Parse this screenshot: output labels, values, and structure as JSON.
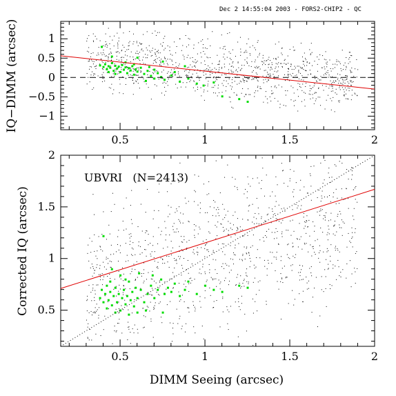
{
  "header": "Dec  2 14:55:04 2003 - FORS2-CHIP2 - QC",
  "colors": {
    "axis": "#000000",
    "fit": "#e00000",
    "highlight": "#00dd00",
    "points": "#000000"
  },
  "chart_data": [
    {
      "type": "scatter",
      "ylabel": "IQ−DIMM (arcsec)",
      "xlim": [
        0.15,
        2.0
      ],
      "ylim": [
        -1.35,
        1.45
      ],
      "xticks": [
        0.5,
        1,
        1.5,
        2
      ],
      "xtick_labels": [
        "0.5",
        "1",
        "1.5",
        "2"
      ],
      "yticks": [
        -1,
        -0.5,
        0,
        0.5,
        1
      ],
      "ytick_labels": [
        "−1",
        "−0.5",
        "0",
        "0.5",
        "1"
      ],
      "reference_line": {
        "y": 0,
        "style": "dashed"
      },
      "fit_line": {
        "x": [
          0.15,
          2.0
        ],
        "y": [
          0.56,
          -0.3
        ]
      },
      "highlight_points": [
        [
          0.38,
          0.32
        ],
        [
          0.4,
          0.28
        ],
        [
          0.41,
          0.35
        ],
        [
          0.42,
          0.22
        ],
        [
          0.43,
          0.3
        ],
        [
          0.44,
          0.26
        ],
        [
          0.45,
          0.38
        ],
        [
          0.46,
          0.18
        ],
        [
          0.47,
          0.31
        ],
        [
          0.48,
          0.24
        ],
        [
          0.49,
          0.29
        ],
        [
          0.5,
          0.15
        ],
        [
          0.51,
          0.33
        ],
        [
          0.52,
          0.21
        ],
        [
          0.53,
          0.27
        ],
        [
          0.54,
          0.12
        ],
        [
          0.55,
          0.25
        ],
        [
          0.56,
          0.19
        ],
        [
          0.57,
          0.3
        ],
        [
          0.58,
          0.08
        ],
        [
          0.59,
          0.22
        ],
        [
          0.6,
          0.16
        ],
        [
          0.62,
          0.26
        ],
        [
          0.64,
          0.1
        ],
        [
          0.66,
          0.18
        ],
        [
          0.68,
          0.05
        ],
        [
          0.7,
          0.21
        ],
        [
          0.72,
          0.12
        ],
        [
          0.74,
          0.02
        ],
        [
          0.76,
          -0.05
        ],
        [
          0.8,
          0.06
        ],
        [
          0.85,
          -0.1
        ],
        [
          0.9,
          -0.02
        ],
        [
          0.95,
          -0.15
        ],
        [
          1.05,
          -0.12
        ],
        [
          1.1,
          -0.48
        ],
        [
          1.2,
          -0.55
        ],
        [
          1.25,
          -0.62
        ],
        [
          0.39,
          0.8
        ],
        [
          0.45,
          0.55
        ],
        [
          0.6,
          0.52
        ],
        [
          0.75,
          0.42
        ],
        [
          0.65,
          -0.08
        ],
        [
          0.88,
          0.3
        ],
        [
          0.53,
          0.4
        ],
        [
          0.47,
          0.1
        ],
        [
          0.58,
          0.35
        ],
        [
          0.7,
          -0.02
        ],
        [
          0.82,
          0.15
        ],
        [
          0.43,
          0.15
        ],
        [
          0.67,
          0.28
        ],
        [
          0.99,
          -0.2
        ]
      ]
    },
    {
      "type": "scatter",
      "xlabel": "DIMM Seeing (arcsec)",
      "ylabel": "Corrected IQ (arcsec)",
      "annotation": "UBVRI   (N=2413)",
      "xlim": [
        0.15,
        2.0
      ],
      "ylim": [
        0.15,
        2.0
      ],
      "xticks": [
        0.5,
        1,
        1.5,
        2
      ],
      "xtick_labels": [
        "0.5",
        "1",
        "1.5",
        "2"
      ],
      "yticks": [
        0.5,
        1,
        1.5,
        2
      ],
      "ytick_labels": [
        "0.5",
        "1",
        "1.5",
        "2"
      ],
      "reference_line": {
        "x": [
          0.15,
          2.0
        ],
        "y": [
          0.15,
          2.0
        ],
        "style": "dotted"
      },
      "fit_line": {
        "x": [
          0.15,
          2.0
        ],
        "y": [
          0.71,
          1.67
        ]
      },
      "highlight_points": [
        [
          0.38,
          0.62
        ],
        [
          0.39,
          0.7
        ],
        [
          0.4,
          0.58
        ],
        [
          0.41,
          0.66
        ],
        [
          0.42,
          0.74
        ],
        [
          0.43,
          0.6
        ],
        [
          0.44,
          0.68
        ],
        [
          0.45,
          0.55
        ],
        [
          0.46,
          0.64
        ],
        [
          0.47,
          0.72
        ],
        [
          0.48,
          0.58
        ],
        [
          0.49,
          0.66
        ],
        [
          0.5,
          0.5
        ],
        [
          0.51,
          0.62
        ],
        [
          0.52,
          0.7
        ],
        [
          0.53,
          0.56
        ],
        [
          0.54,
          0.64
        ],
        [
          0.55,
          0.78
        ],
        [
          0.56,
          0.6
        ],
        [
          0.57,
          0.68
        ],
        [
          0.58,
          0.54
        ],
        [
          0.59,
          0.72
        ],
        [
          0.6,
          0.62
        ],
        [
          0.62,
          0.7
        ],
        [
          0.64,
          0.58
        ],
        [
          0.66,
          0.66
        ],
        [
          0.68,
          0.74
        ],
        [
          0.7,
          0.62
        ],
        [
          0.72,
          0.7
        ],
        [
          0.74,
          0.8
        ],
        [
          0.76,
          0.66
        ],
        [
          0.78,
          0.72
        ],
        [
          0.8,
          0.68
        ],
        [
          0.82,
          0.76
        ],
        [
          0.85,
          0.64
        ],
        [
          0.88,
          0.7
        ],
        [
          0.9,
          0.78
        ],
        [
          0.95,
          0.66
        ],
        [
          1.0,
          0.74
        ],
        [
          1.05,
          0.7
        ],
        [
          1.1,
          0.68
        ],
        [
          1.2,
          0.74
        ],
        [
          1.25,
          0.72
        ],
        [
          0.4,
          1.22
        ],
        [
          0.45,
          0.9
        ],
        [
          0.5,
          0.84
        ],
        [
          0.55,
          0.46
        ],
        [
          0.6,
          0.48
        ],
        [
          0.65,
          0.5
        ],
        [
          0.75,
          0.48
        ],
        [
          0.44,
          0.78
        ],
        [
          0.53,
          0.8
        ],
        [
          0.61,
          0.86
        ],
        [
          0.69,
          0.84
        ],
        [
          0.42,
          0.52
        ],
        [
          0.47,
          0.48
        ]
      ]
    }
  ]
}
